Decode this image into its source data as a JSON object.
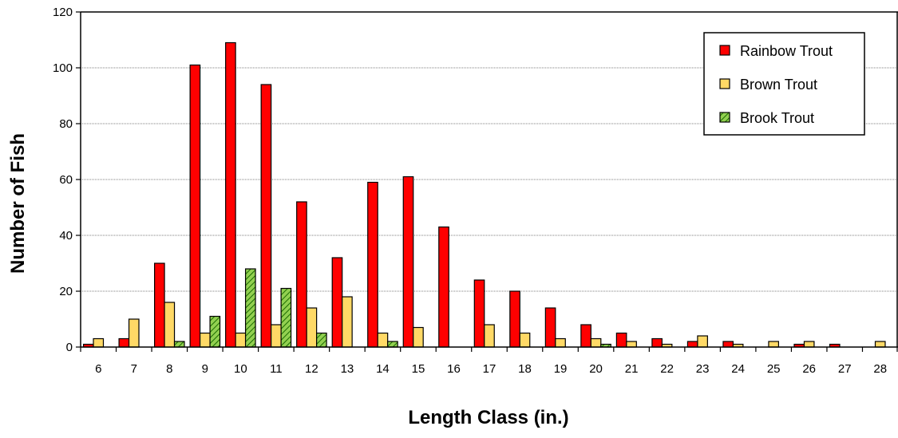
{
  "chart_data": {
    "type": "bar",
    "title": "",
    "xlabel": "Length Class (in.)",
    "ylabel": "Number of Fish",
    "categories": [
      "6",
      "7",
      "8",
      "9",
      "10",
      "11",
      "12",
      "13",
      "14",
      "15",
      "16",
      "17",
      "18",
      "19",
      "20",
      "21",
      "22",
      "23",
      "24",
      "25",
      "26",
      "27",
      "28"
    ],
    "ylim": [
      0,
      120
    ],
    "yticks": [
      "0",
      "20",
      "40",
      "60",
      "80",
      "100",
      "120"
    ],
    "grid": "horizontal dotted",
    "legend_position": "top-right",
    "series": [
      {
        "name": "Rainbow Trout",
        "color": "#ff0000",
        "pattern": "solid",
        "values": [
          1,
          3,
          30,
          101,
          109,
          94,
          52,
          32,
          59,
          61,
          43,
          24,
          20,
          14,
          8,
          5,
          3,
          2,
          2,
          0,
          1,
          1,
          0
        ]
      },
      {
        "name": "Brown Trout",
        "color": "#ffd966",
        "pattern": "solid",
        "values": [
          3,
          10,
          16,
          5,
          5,
          8,
          14,
          18,
          5,
          7,
          0,
          8,
          5,
          3,
          3,
          2,
          1,
          4,
          1,
          2,
          2,
          0,
          2
        ]
      },
      {
        "name": "Brook Trout",
        "color": "#92d050",
        "pattern": "diagonal-hatch",
        "values": [
          0,
          0,
          2,
          11,
          28,
          21,
          5,
          0,
          2,
          0,
          0,
          0,
          0,
          0,
          1,
          0,
          0,
          0,
          0,
          0,
          0,
          0,
          0
        ]
      }
    ]
  }
}
